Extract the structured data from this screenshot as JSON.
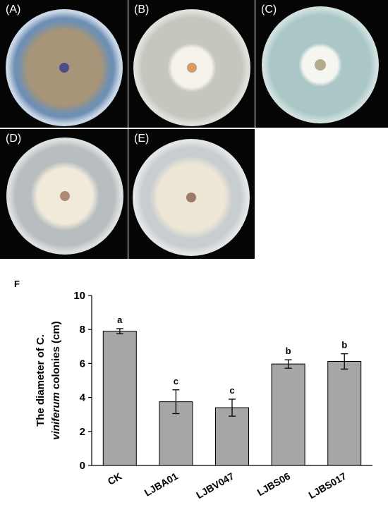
{
  "panels": [
    {
      "label": "(A)",
      "colors": {
        "bg": "#6f8fb3",
        "rim": "#c9d6e6",
        "colony": "#a79579",
        "center": "#4a4f85"
      }
    },
    {
      "label": "(B)",
      "colors": {
        "bg": "#c5c6bd",
        "rim": "#e0e1dc",
        "colony": "#f6f3ea",
        "center": "#d89a64"
      }
    },
    {
      "label": "(C)",
      "colors": {
        "bg": "#aac6c6",
        "rim": "#cfe0df",
        "colony": "#f5f6f0",
        "center": "#b4aa8e"
      }
    },
    {
      "label": "(D)",
      "colors": {
        "bg": "#b8bec0",
        "rim": "#dce0e0",
        "colony": "#f0eadb",
        "center": "#b08a72"
      }
    },
    {
      "label": "(E)",
      "colors": {
        "bg": "#c8cdd0",
        "rim": "#e2e6e7",
        "colony": "#eee7d6",
        "center": "#9c7a6a"
      }
    }
  ],
  "figure_label": "F",
  "chart_data": {
    "type": "bar",
    "categories": [
      "CK",
      "LJBA01",
      "LJBV047",
      "LJBS06",
      "LJBS017"
    ],
    "values": [
      7.9,
      3.75,
      3.4,
      5.97,
      6.12
    ],
    "errors": [
      0.15,
      0.7,
      0.5,
      0.25,
      0.45
    ],
    "letters": [
      "a",
      "c",
      "c",
      "b",
      "b"
    ],
    "ylabel_line1": "The diameter of C.",
    "ylabel_line2_italic": "viniferum",
    "ylabel_line2_rest": " colonies (cm)",
    "ylim": [
      0,
      10
    ],
    "yticks": [
      0,
      2,
      4,
      6,
      8,
      10
    ],
    "grid": false,
    "bar_color": "#a6a6a6"
  }
}
